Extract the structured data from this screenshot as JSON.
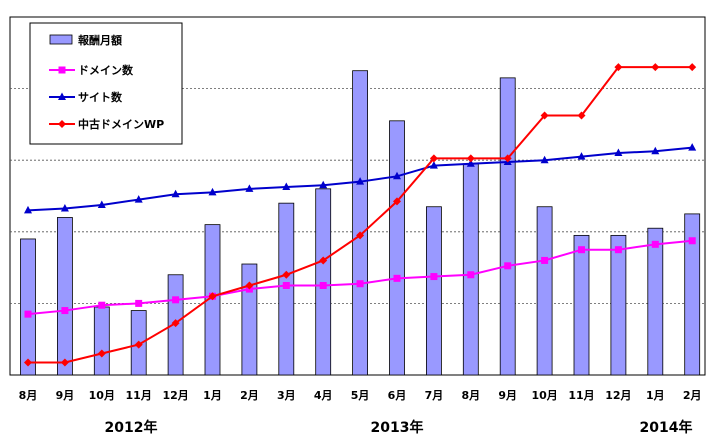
{
  "chart_data": {
    "type": "bar+line",
    "categories": [
      "8月",
      "9月",
      "10月",
      "11月",
      "12月",
      "1月",
      "2月",
      "3月",
      "4月",
      "5月",
      "6月",
      "7月",
      "8月",
      "9月",
      "10月",
      "11月",
      "12月",
      "1月",
      "2月"
    ],
    "year_labels": [
      "2012年",
      "2013年",
      "2014年"
    ],
    "ylim": [
      0,
      100
    ],
    "grid": true,
    "legend_position": "top-left",
    "series": [
      {
        "name": "報酬月額",
        "kind": "bar",
        "color": "#9999ff",
        "values": [
          38,
          44,
          19,
          18,
          28,
          42,
          31,
          48,
          52,
          85,
          71,
          47,
          59,
          83,
          47,
          39,
          39,
          41,
          45
        ]
      },
      {
        "name": "ドメイン数",
        "kind": "line",
        "marker": "square",
        "color": "#ff00ff",
        "values": [
          17,
          18,
          19.5,
          20,
          21,
          22,
          24,
          25,
          25,
          25.5,
          27,
          27.5,
          28,
          30.5,
          32,
          35,
          35,
          36.5,
          37.5
        ]
      },
      {
        "name": "サイト数",
        "kind": "line",
        "marker": "triangle",
        "color": "#0000cc",
        "values": [
          46,
          46.5,
          47.5,
          49,
          50.5,
          51,
          52,
          52.5,
          53,
          54,
          55.5,
          58.5,
          59,
          59.5,
          60,
          61,
          62,
          62.5,
          63.5
        ]
      },
      {
        "name": "中古ドメインWP",
        "kind": "line",
        "marker": "diamond",
        "color": "#ff0000",
        "values": [
          3.5,
          3.5,
          6,
          8.5,
          14.5,
          22,
          25,
          28,
          32,
          39,
          48.5,
          60.5,
          60.5,
          60.5,
          72.5,
          72.5,
          86,
          86,
          86
        ]
      }
    ]
  }
}
